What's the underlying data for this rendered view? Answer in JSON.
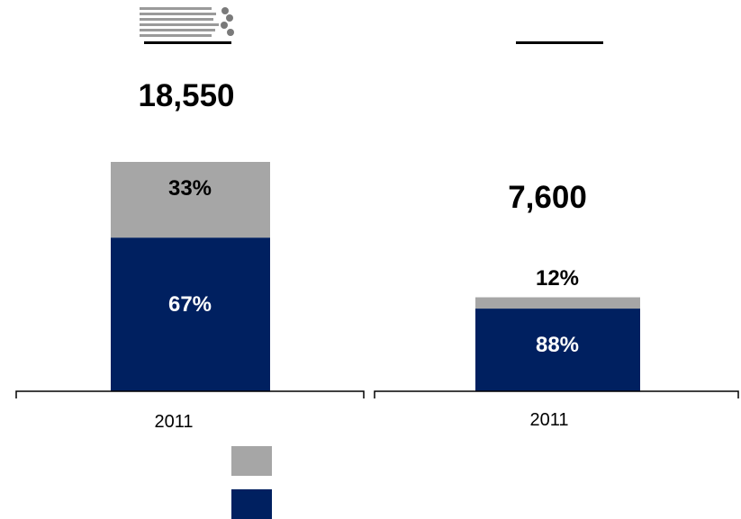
{
  "colors": {
    "upper": "#a6a6a6",
    "lower": "#002060",
    "axis": "#000000"
  },
  "logo": {
    "icon": "logo-mark"
  },
  "chart_data": [
    {
      "type": "bar",
      "stacked": true,
      "categories": [
        "2011"
      ],
      "total_label": "18,550",
      "total_value": 18550,
      "series": [
        {
          "name": "",
          "values": [
            67
          ],
          "label": "67%",
          "color": "#002060"
        },
        {
          "name": "",
          "values": [
            33
          ],
          "label": "33%",
          "color": "#a6a6a6"
        }
      ]
    },
    {
      "type": "bar",
      "stacked": true,
      "categories": [
        "2011"
      ],
      "total_label": "7,600",
      "total_value": 7600,
      "series": [
        {
          "name": "",
          "values": [
            88
          ],
          "label": "88%",
          "color": "#002060"
        },
        {
          "name": "",
          "values": [
            12
          ],
          "label": "12%",
          "color": "#a6a6a6"
        }
      ]
    }
  ],
  "legend": [
    {
      "label": "",
      "color": "#a6a6a6"
    },
    {
      "label": "",
      "color": "#002060"
    }
  ]
}
